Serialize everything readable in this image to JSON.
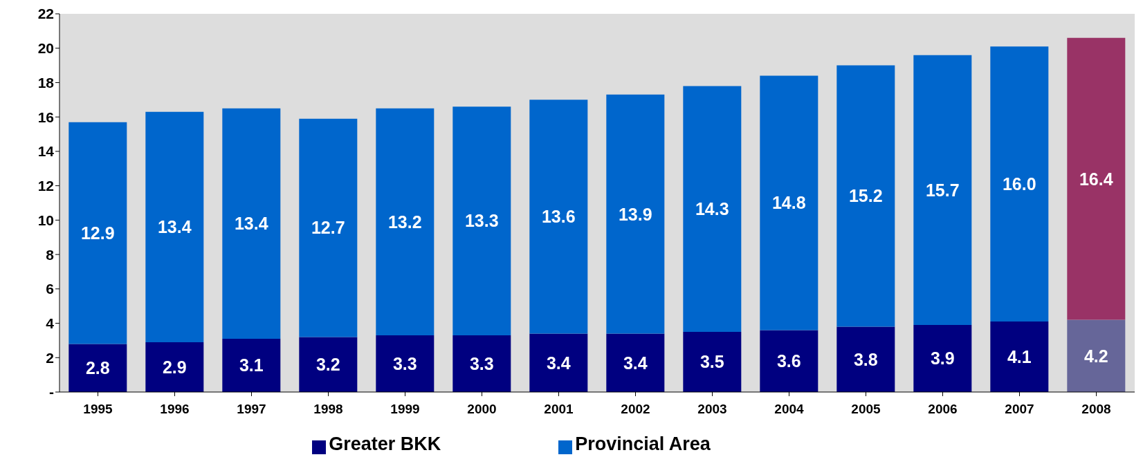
{
  "chart_data": {
    "type": "bar",
    "stacked": true,
    "categories": [
      "1995",
      "1996",
      "1997",
      "1998",
      "1999",
      "2000",
      "2001",
      "2002",
      "2003",
      "2004",
      "2005",
      "2006",
      "2007",
      "2008"
    ],
    "series": [
      {
        "name": "Greater BKK",
        "color": "#000080",
        "colors": [
          "#000080",
          "#000080",
          "#000080",
          "#000080",
          "#000080",
          "#000080",
          "#000080",
          "#000080",
          "#000080",
          "#000080",
          "#000080",
          "#000080",
          "#000080",
          "#666699"
        ],
        "values": [
          2.8,
          2.9,
          3.1,
          3.2,
          3.3,
          3.3,
          3.4,
          3.4,
          3.5,
          3.6,
          3.8,
          3.9,
          4.1,
          4.2
        ]
      },
      {
        "name": "Provincial Area",
        "color": "#0066cc",
        "colors": [
          "#0066cc",
          "#0066cc",
          "#0066cc",
          "#0066cc",
          "#0066cc",
          "#0066cc",
          "#0066cc",
          "#0066cc",
          "#0066cc",
          "#0066cc",
          "#0066cc",
          "#0066cc",
          "#0066cc",
          "#993366"
        ],
        "values": [
          12.9,
          13.4,
          13.4,
          12.7,
          13.2,
          13.3,
          13.6,
          13.9,
          14.3,
          14.8,
          15.2,
          15.7,
          16.0,
          16.4
        ],
        "value_labels": [
          "12.9",
          "13.4",
          "13.4",
          "12.7",
          "13.2",
          "13.3",
          "13.6",
          "13.9",
          "14.3",
          "14.8",
          "15.2",
          "15.7",
          "16.0",
          "16.4"
        ]
      }
    ],
    "ylim": [
      0,
      22
    ],
    "yticks": [
      {
        "value": 0,
        "label": "-"
      },
      2,
      4,
      6,
      8,
      10,
      12,
      14,
      16,
      18,
      20,
      22
    ],
    "data_labels": true,
    "grid": false,
    "legend": "bottom"
  }
}
